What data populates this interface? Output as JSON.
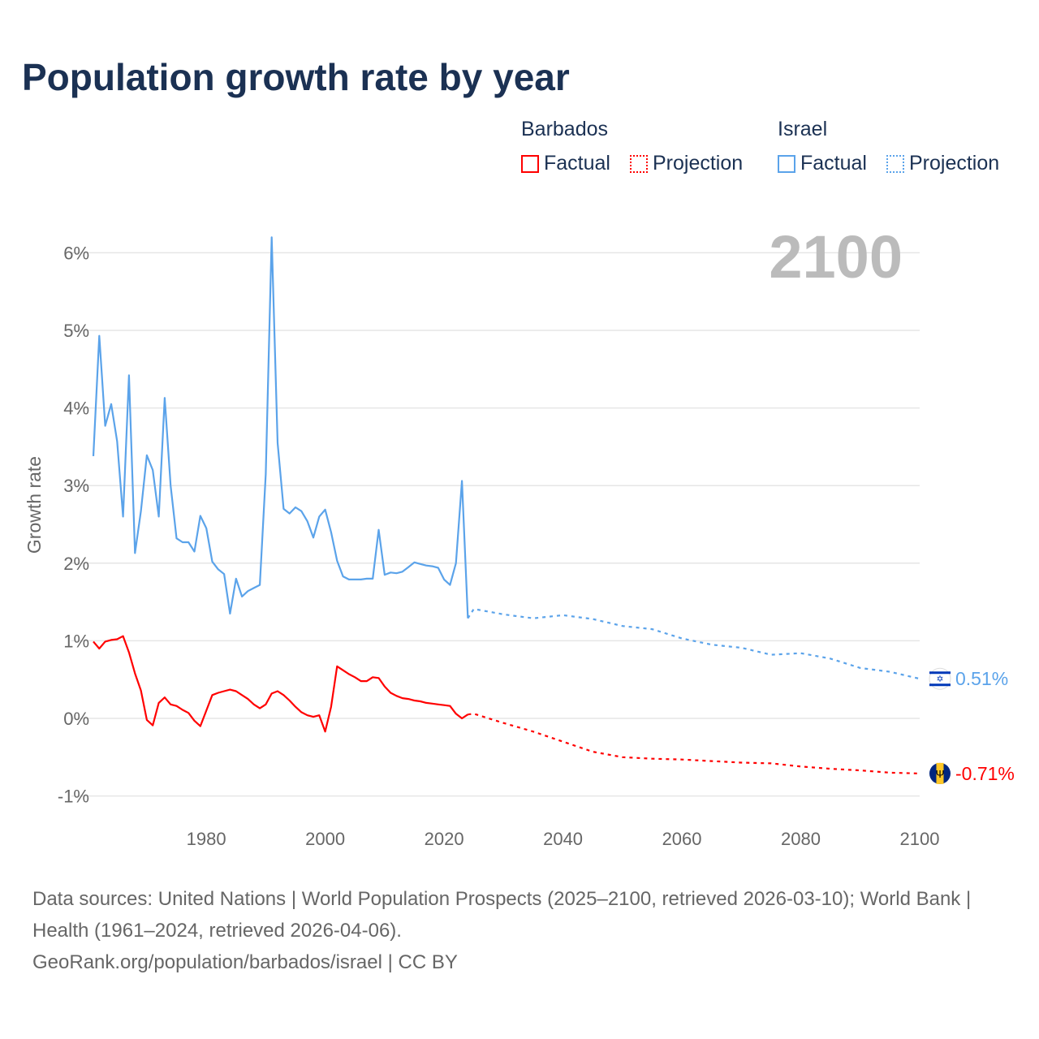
{
  "title": "Population growth rate by year",
  "legend": {
    "groups": [
      {
        "name": "Barbados",
        "factual": "Factual",
        "projection": "Projection",
        "color": "#ff0000"
      },
      {
        "name": "Israel",
        "factual": "Factual",
        "projection": "Projection",
        "color": "#5ba3ea"
      }
    ]
  },
  "year_label": "2100",
  "sources": {
    "line1": "Data sources: United Nations | World Population Prospects (2025–2100, retrieved 2026-03-10); World Bank | Health (1961–2024, retrieved 2026-04-06).",
    "line2": "GeoRank.org/population/barbados/israel | CC BY"
  },
  "chart_data": {
    "type": "line",
    "title": "Population growth rate by year",
    "xlabel": "",
    "ylabel": "Growth rate",
    "xlim": [
      1961,
      2100
    ],
    "ylim": [
      -1.2,
      6.5
    ],
    "yticks": [
      -1,
      0,
      1,
      2,
      3,
      4,
      5,
      6
    ],
    "ytick_labels": [
      "-1%",
      "0%",
      "1%",
      "2%",
      "3%",
      "4%",
      "5%",
      "6%"
    ],
    "xticks": [
      1980,
      2000,
      2020,
      2040,
      2060,
      2080,
      2100
    ],
    "xtick_labels": [
      "1980",
      "2000",
      "2020",
      "2040",
      "2060",
      "2080",
      "2100"
    ],
    "grid": true,
    "series": [
      {
        "name": "Israel",
        "color": "#5ba3ea",
        "end_label": "0.51%",
        "flag": "israel-flag",
        "factual": {
          "x": [
            1961,
            1962,
            1963,
            1964,
            1965,
            1966,
            1967,
            1968,
            1969,
            1970,
            1971,
            1972,
            1973,
            1974,
            1975,
            1976,
            1977,
            1978,
            1979,
            1980,
            1981,
            1982,
            1983,
            1984,
            1985,
            1986,
            1987,
            1988,
            1989,
            1990,
            1991,
            1992,
            1993,
            1994,
            1995,
            1996,
            1997,
            1998,
            1999,
            2000,
            2001,
            2002,
            2003,
            2004,
            2005,
            2006,
            2007,
            2008,
            2009,
            2010,
            2011,
            2012,
            2013,
            2014,
            2015,
            2016,
            2017,
            2018,
            2019,
            2020,
            2021,
            2022,
            2023,
            2024
          ],
          "y": [
            3.38,
            4.93,
            3.77,
            4.05,
            3.57,
            2.6,
            4.42,
            2.13,
            2.67,
            3.39,
            3.2,
            2.6,
            4.13,
            3.0,
            2.32,
            2.27,
            2.27,
            2.15,
            2.61,
            2.45,
            2.02,
            1.92,
            1.86,
            1.35,
            1.8,
            1.57,
            1.64,
            1.68,
            1.72,
            3.15,
            6.2,
            3.55,
            2.7,
            2.64,
            2.72,
            2.67,
            2.54,
            2.33,
            2.6,
            2.69,
            2.4,
            2.03,
            1.83,
            1.79,
            1.79,
            1.79,
            1.8,
            1.8,
            2.43,
            1.85,
            1.88,
            1.87,
            1.89,
            1.95,
            2.01,
            1.99,
            1.97,
            1.96,
            1.94,
            1.79,
            1.72,
            2.0,
            3.06,
            1.29
          ]
        },
        "projection": {
          "x": [
            2024,
            2025,
            2030,
            2035,
            2040,
            2045,
            2050,
            2055,
            2060,
            2065,
            2070,
            2075,
            2080,
            2085,
            2090,
            2095,
            2100
          ],
          "y": [
            1.29,
            1.41,
            1.34,
            1.29,
            1.33,
            1.28,
            1.19,
            1.15,
            1.03,
            0.95,
            0.91,
            0.82,
            0.84,
            0.77,
            0.65,
            0.6,
            0.51
          ]
        }
      },
      {
        "name": "Barbados",
        "color": "#ff0000",
        "end_label": "-0.71%",
        "flag": "barbados-flag",
        "factual": {
          "x": [
            1961,
            1962,
            1963,
            1964,
            1965,
            1966,
            1967,
            1968,
            1969,
            1970,
            1971,
            1972,
            1973,
            1974,
            1975,
            1976,
            1977,
            1978,
            1979,
            1980,
            1981,
            1982,
            1983,
            1984,
            1985,
            1986,
            1987,
            1988,
            1989,
            1990,
            1991,
            1992,
            1993,
            1994,
            1995,
            1996,
            1997,
            1998,
            1999,
            2000,
            2001,
            2002,
            2003,
            2004,
            2005,
            2006,
            2007,
            2008,
            2009,
            2010,
            2011,
            2012,
            2013,
            2014,
            2015,
            2016,
            2017,
            2018,
            2019,
            2020,
            2021,
            2022,
            2023,
            2024
          ],
          "y": [
            0.99,
            0.9,
            0.99,
            1.01,
            1.02,
            1.06,
            0.85,
            0.58,
            0.36,
            -0.02,
            -0.09,
            0.2,
            0.27,
            0.18,
            0.16,
            0.11,
            0.07,
            -0.03,
            -0.1,
            0.1,
            0.3,
            0.33,
            0.35,
            0.37,
            0.35,
            0.3,
            0.25,
            0.18,
            0.13,
            0.18,
            0.32,
            0.35,
            0.3,
            0.23,
            0.15,
            0.08,
            0.04,
            0.02,
            0.04,
            -0.17,
            0.15,
            0.67,
            0.62,
            0.57,
            0.53,
            0.48,
            0.48,
            0.53,
            0.52,
            0.41,
            0.33,
            0.29,
            0.26,
            0.25,
            0.23,
            0.22,
            0.2,
            0.19,
            0.18,
            0.17,
            0.16,
            0.06,
            0.0,
            0.05
          ]
        },
        "projection": {
          "x": [
            2024,
            2025,
            2030,
            2035,
            2040,
            2045,
            2050,
            2055,
            2060,
            2065,
            2070,
            2075,
            2080,
            2085,
            2090,
            2095,
            2100
          ],
          "y": [
            0.05,
            0.06,
            -0.06,
            -0.17,
            -0.3,
            -0.43,
            -0.5,
            -0.52,
            -0.53,
            -0.55,
            -0.57,
            -0.58,
            -0.62,
            -0.65,
            -0.67,
            -0.7,
            -0.71
          ]
        }
      }
    ]
  }
}
